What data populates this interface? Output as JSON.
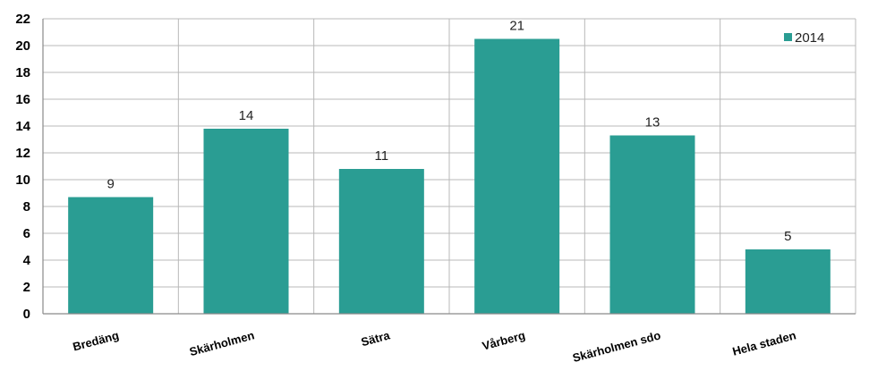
{
  "chart_data": {
    "type": "bar",
    "categories": [
      "Bredäng",
      "Skärholmen",
      "Sätra",
      "Vårberg",
      "Skärholmen sdo",
      "Hela staden"
    ],
    "series": [
      {
        "name": "2014",
        "values": [
          8.7,
          13.8,
          10.8,
          20.5,
          13.3,
          4.8
        ],
        "data_labels": [
          "9",
          "14",
          "11",
          "21",
          "13",
          "5"
        ],
        "color": "#2a9d93"
      }
    ],
    "ylim": [
      0,
      22
    ],
    "yticks": [
      "0",
      "2",
      "4",
      "6",
      "8",
      "10",
      "12",
      "14",
      "16",
      "18",
      "20",
      "22"
    ],
    "grid": true,
    "legend_position": "top-right"
  }
}
